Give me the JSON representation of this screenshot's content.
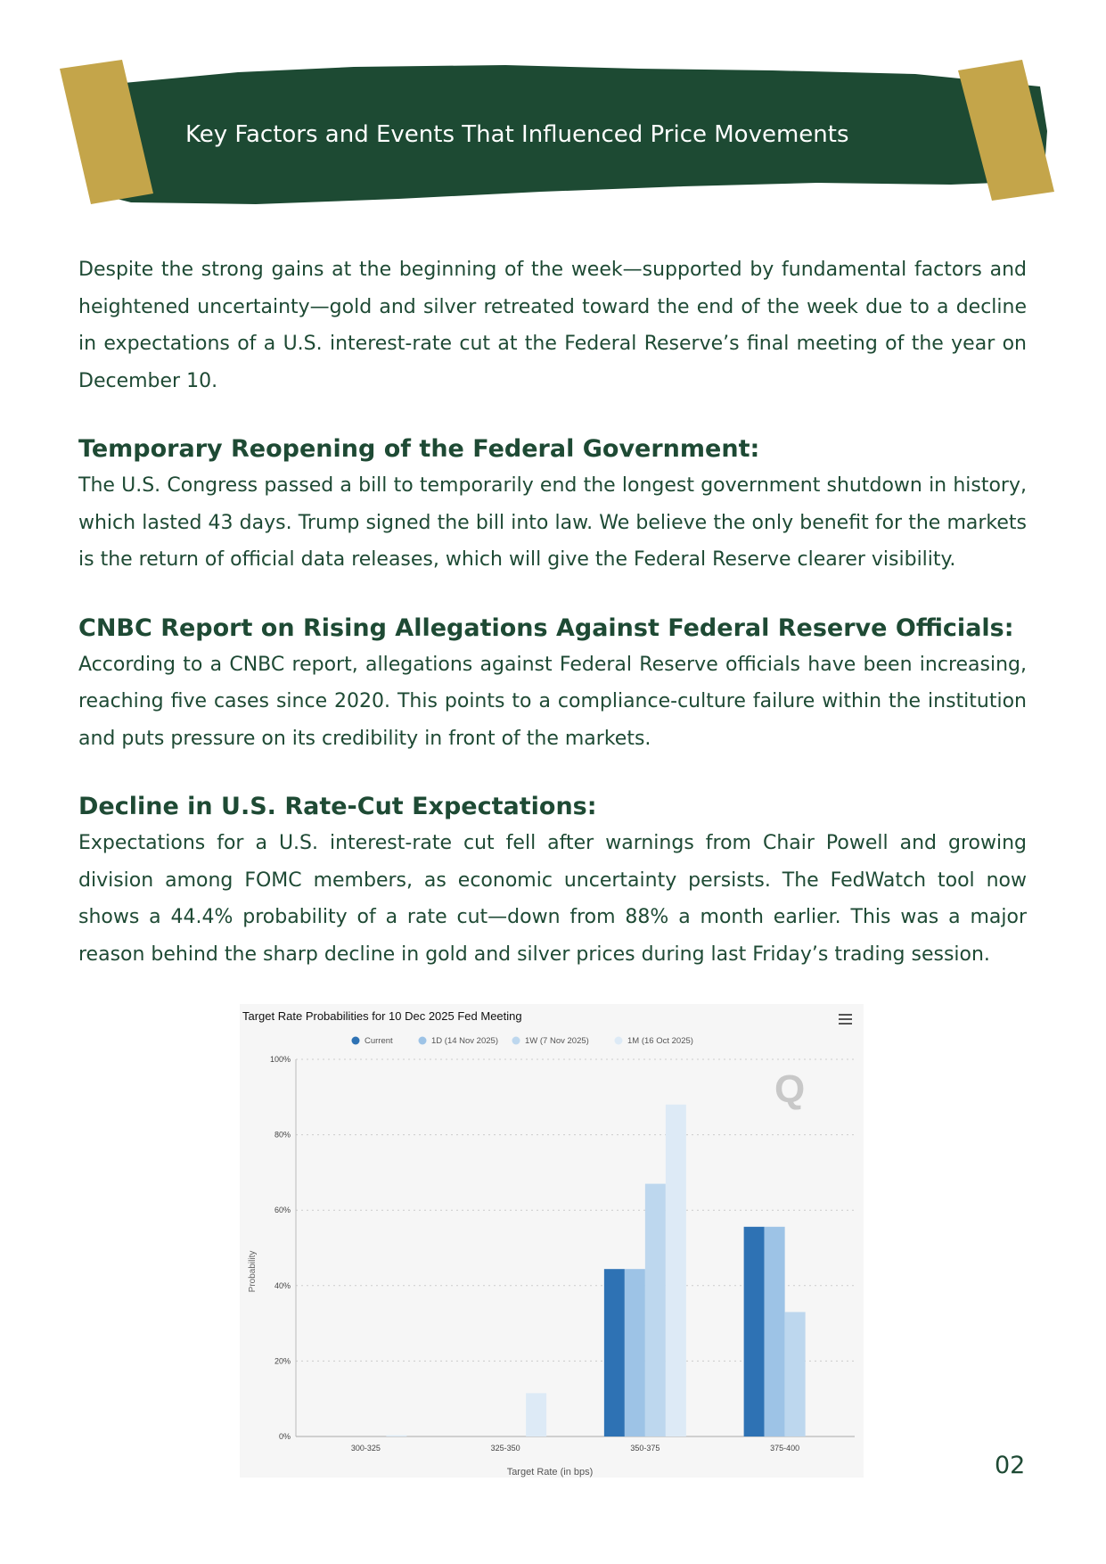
{
  "banner": {
    "title": "Key Factors and Events That Influenced Price Movements"
  },
  "intro": "Despite the strong gains at the beginning of the week—supported by fundamental factors and heightened uncertainty—gold and silver retreated toward the end of the week due to a decline in expectations of a U.S. interest-rate cut at the Federal Reserve’s final meeting of the year on December 10.",
  "sections": [
    {
      "heading": "Temporary Reopening of the Federal Government:",
      "body": "The U.S. Congress passed a bill to temporarily end the longest government shutdown in history, which lasted 43 days. Trump signed the bill into law. We believe the only benefit for the markets is the return of official data releases, which will give the Federal Reserve clearer visibility."
    },
    {
      "heading": "CNBC Report on Rising Allegations Against Federal Reserve Officials:",
      "body": "According to a CNBC report, allegations against Federal Reserve officials have been increasing, reaching five cases since 2020. This points to a compliance-culture failure within the institution and puts pressure on its credibility in front of the markets."
    },
    {
      "heading": "Decline in U.S. Rate-Cut Expectations:",
      "body": "Expectations for a U.S. interest-rate cut fell after warnings from Chair Powell and growing division among FOMC members, as economic uncertainty persists. The FedWatch tool now shows a 44.4% probability of a rate cut—down from 88% a month earlier. This was a major reason behind the sharp decline in gold and silver prices during last Friday’s trading session."
    }
  ],
  "page_number": "02",
  "colors": {
    "brand_green": "#1d4a33",
    "tape_gold": "#c4a54a"
  },
  "chart_data": {
    "type": "bar",
    "title": "Target Rate Probabilities for 10 Dec 2025 Fed Meeting",
    "xlabel": "Target Rate (in bps)",
    "ylabel": "Probability",
    "categories": [
      "300-325",
      "325-350",
      "350-375",
      "375-400"
    ],
    "ylim": [
      0,
      100
    ],
    "yticks": [
      "0%",
      "20%",
      "40%",
      "60%",
      "80%",
      "100%"
    ],
    "grid": true,
    "legend_position": "top",
    "series": [
      {
        "name": "Current",
        "color": "#2e72b4",
        "values": [
          0,
          0,
          44.4,
          55.6
        ]
      },
      {
        "name": "1D (14 Nov 2025)",
        "color": "#9dc3e6",
        "values": [
          0,
          0,
          44.4,
          55.6
        ]
      },
      {
        "name": "1W (7 Nov 2025)",
        "color": "#bdd7ee",
        "values": [
          0,
          0,
          67,
          33
        ]
      },
      {
        "name": "1M (16 Oct 2025)",
        "color": "#ddeaf6",
        "values": [
          0.3,
          11.5,
          88,
          0
        ]
      }
    ],
    "menu_icon": "hamburger-menu-icon"
  }
}
